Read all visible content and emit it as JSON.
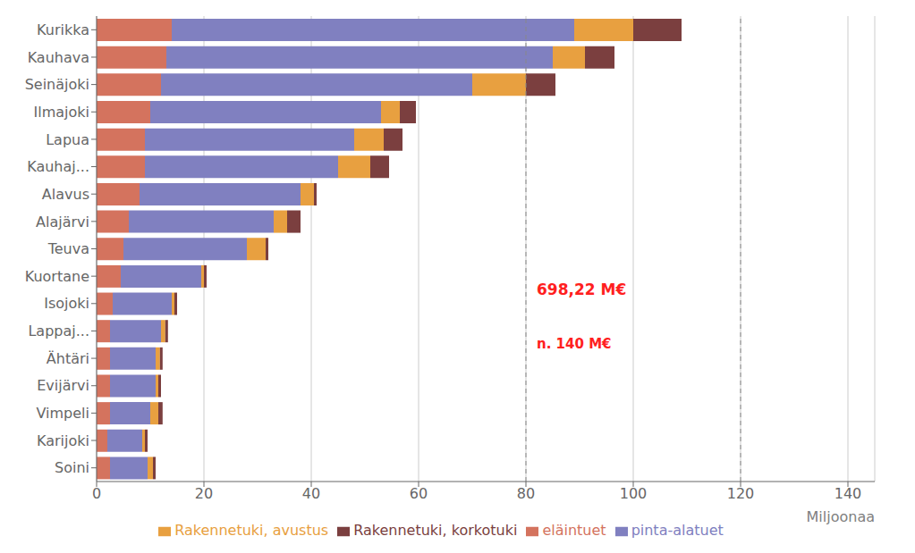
{
  "chart_data": {
    "type": "bar",
    "orientation": "horizontal",
    "stacked": true,
    "categories": [
      "Kurikka",
      "Kauhava",
      "Seinäjoki",
      "Ilmajoki",
      "Lapua",
      "Kauhaj...",
      "Alavus",
      "Alajärvi",
      "Teuva",
      "Kuortane",
      "Isojoki",
      "Lappaj...",
      "Ähtäri",
      "Evijärvi",
      "Vimpeli",
      "Karijoki",
      "Soini"
    ],
    "series": [
      {
        "name": "eläintuet",
        "color": "#D4735E",
        "values": [
          14.0,
          13.0,
          12.0,
          10.0,
          9.0,
          9.0,
          8.0,
          6.0,
          5.0,
          4.5,
          3.0,
          2.5,
          2.5,
          2.5,
          2.5,
          2.0,
          2.5
        ]
      },
      {
        "name": "pinta-alatuet",
        "color": "#8080C0",
        "values": [
          75.0,
          72.0,
          58.0,
          43.0,
          39.0,
          36.0,
          30.0,
          27.0,
          23.0,
          15.0,
          11.0,
          9.5,
          8.5,
          8.5,
          7.5,
          6.5,
          7.0
        ]
      },
      {
        "name": "Rakennetuki, avustus",
        "color": "#E8A040",
        "values": [
          11.0,
          6.0,
          10.0,
          3.5,
          5.5,
          6.0,
          2.5,
          2.5,
          3.5,
          0.5,
          0.5,
          0.8,
          0.8,
          0.5,
          1.5,
          0.5,
          1.0
        ]
      },
      {
        "name": "Rakennetuki, korkotuki",
        "color": "#7B3F3F",
        "values": [
          9.0,
          5.5,
          5.5,
          3.0,
          3.5,
          3.5,
          0.5,
          2.5,
          0.5,
          0.5,
          0.5,
          0.5,
          0.5,
          0.5,
          0.8,
          0.5,
          0.5
        ]
      }
    ],
    "xlabel": "Miljoonaa",
    "xlim": [
      0,
      145
    ],
    "xticks": [
      0,
      20,
      40,
      60,
      80,
      100,
      120,
      140
    ],
    "grid": true,
    "dashed_lines": [
      80,
      120
    ],
    "annotations": [
      {
        "text": "698,22 M€",
        "color": "#FF2020"
      },
      {
        "text": "n. 140 M€",
        "color": "#FF2020"
      }
    ],
    "legend": "bottom"
  }
}
